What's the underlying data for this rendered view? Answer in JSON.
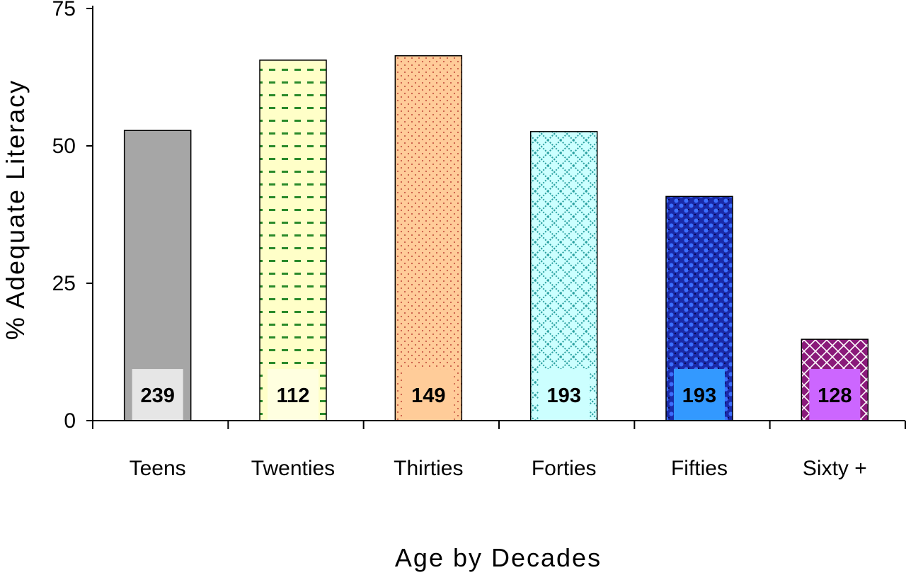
{
  "chart_data": {
    "type": "bar",
    "title": "",
    "xlabel": "Age by Decades",
    "ylabel": "% Adequate Literacy",
    "ylim": [
      0,
      75
    ],
    "yticks": [
      "0",
      "25",
      "50",
      "75"
    ],
    "categories": [
      "Teens",
      "Twenties",
      "Thirties",
      "Forties",
      "Fifties",
      "Sixty +"
    ],
    "values": [
      52.8,
      65.6,
      66.4,
      52.6,
      40.8,
      14.8
    ],
    "counts": [
      "239",
      "112",
      "149",
      "193",
      "193",
      "128"
    ],
    "grid": false,
    "legend": "none",
    "bars": [
      {
        "pattern": "solid",
        "fill": "#a6a6a6",
        "fg": "#a6a6a6",
        "label_bg": "#e6e6e6"
      },
      {
        "pattern": "dashes",
        "fill": "#ffffc8",
        "fg": "#2a8a2a",
        "label_bg": "#ffffe0"
      },
      {
        "pattern": "dots",
        "fill": "#ffcc99",
        "fg": "#c85a46",
        "label_bg": "#ffcc99"
      },
      {
        "pattern": "lattice",
        "fill": "#ccffff",
        "fg": "#2aa0a0",
        "label_bg": "#ccffff"
      },
      {
        "pattern": "checker",
        "fill": "#1a2aa8",
        "fg": "#3a6eff",
        "label_bg": "#3399ff"
      },
      {
        "pattern": "crosshatch",
        "fill": "#8a1a7a",
        "fg": "#ffffff",
        "label_bg": "#cc66ff"
      }
    ]
  }
}
